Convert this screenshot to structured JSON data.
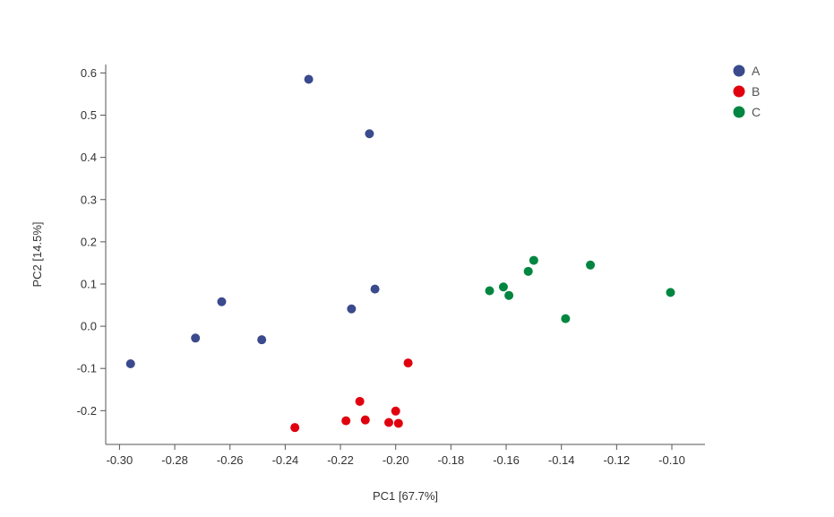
{
  "chart_data": {
    "type": "scatter",
    "title": "",
    "xlabel": "PC1 [67.7%]",
    "ylabel": "PC2 [14.5%]",
    "xlim": [
      -0.305,
      -0.088
    ],
    "ylim": [
      -0.28,
      0.62
    ],
    "xticks": [
      -0.3,
      -0.28,
      -0.26,
      -0.24,
      -0.22,
      -0.2,
      -0.18,
      -0.16,
      -0.14,
      -0.12,
      -0.1
    ],
    "yticks": [
      -0.2,
      -0.1,
      0.0,
      0.1,
      0.2,
      0.3,
      0.4,
      0.5,
      0.6
    ],
    "xtick_labels": [
      "-0.30",
      "-0.28",
      "-0.26",
      "-0.24",
      "-0.22",
      "-0.20",
      "-0.18",
      "-0.16",
      "-0.14",
      "-0.12",
      "-0.10"
    ],
    "ytick_labels": [
      "-0.2",
      "-0.1",
      "0.0",
      "0.1",
      "0.2",
      "0.3",
      "0.4",
      "0.5",
      "0.6"
    ],
    "grid": false,
    "legend_position": "top-right",
    "series": [
      {
        "name": "A",
        "color": "#3a4a8c",
        "points": [
          {
            "x": -0.2315,
            "y": 0.585
          },
          {
            "x": -0.2095,
            "y": 0.456
          },
          {
            "x": -0.2075,
            "y": 0.088
          },
          {
            "x": -0.216,
            "y": 0.041
          },
          {
            "x": -0.263,
            "y": 0.058
          },
          {
            "x": -0.2725,
            "y": -0.028
          },
          {
            "x": -0.2485,
            "y": -0.032
          },
          {
            "x": -0.296,
            "y": -0.089
          }
        ]
      },
      {
        "name": "B",
        "color": "#e0000e",
        "points": [
          {
            "x": -0.1955,
            "y": -0.087
          },
          {
            "x": -0.213,
            "y": -0.178
          },
          {
            "x": -0.2,
            "y": -0.201
          },
          {
            "x": -0.218,
            "y": -0.224
          },
          {
            "x": -0.211,
            "y": -0.222
          },
          {
            "x": -0.2025,
            "y": -0.228
          },
          {
            "x": -0.199,
            "y": -0.23
          },
          {
            "x": -0.2365,
            "y": -0.24
          }
        ]
      },
      {
        "name": "C",
        "color": "#008640",
        "points": [
          {
            "x": -0.15,
            "y": 0.156
          },
          {
            "x": -0.152,
            "y": 0.13
          },
          {
            "x": -0.1295,
            "y": 0.145
          },
          {
            "x": -0.166,
            "y": 0.084
          },
          {
            "x": -0.161,
            "y": 0.093
          },
          {
            "x": -0.159,
            "y": 0.073
          },
          {
            "x": -0.1005,
            "y": 0.08
          },
          {
            "x": -0.1385,
            "y": 0.018
          }
        ]
      }
    ]
  }
}
